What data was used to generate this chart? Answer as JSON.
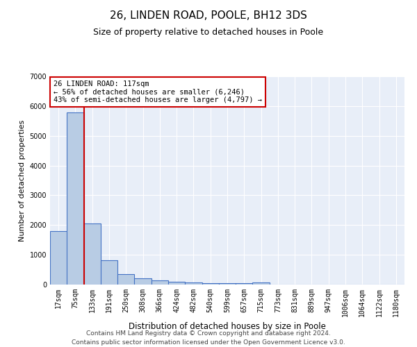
{
  "title": "26, LINDEN ROAD, POOLE, BH12 3DS",
  "subtitle": "Size of property relative to detached houses in Poole",
  "xlabel": "Distribution of detached houses by size in Poole",
  "ylabel": "Number of detached properties",
  "categories": [
    "17sqm",
    "75sqm",
    "133sqm",
    "191sqm",
    "250sqm",
    "308sqm",
    "366sqm",
    "424sqm",
    "482sqm",
    "540sqm",
    "599sqm",
    "657sqm",
    "715sqm",
    "773sqm",
    "831sqm",
    "889sqm",
    "947sqm",
    "1006sqm",
    "1064sqm",
    "1122sqm",
    "1180sqm"
  ],
  "values": [
    1800,
    5780,
    2060,
    820,
    340,
    220,
    130,
    95,
    70,
    55,
    50,
    45,
    80,
    0,
    0,
    0,
    0,
    0,
    0,
    0,
    0
  ],
  "bar_color": "#b8cce4",
  "bar_edge_color": "#4472c4",
  "property_line_label": "26 LINDEN ROAD: 117sqm",
  "annotation_line1": "← 56% of detached houses are smaller (6,246)",
  "annotation_line2": "43% of semi-detached houses are larger (4,797) →",
  "annotation_box_color": "#ffffff",
  "annotation_border_color": "#cc0000",
  "property_line_color": "#cc0000",
  "ylim": [
    0,
    7000
  ],
  "yticks": [
    0,
    1000,
    2000,
    3000,
    4000,
    5000,
    6000,
    7000
  ],
  "background_color": "#e8eef8",
  "footer_line1": "Contains HM Land Registry data © Crown copyright and database right 2024.",
  "footer_line2": "Contains public sector information licensed under the Open Government Licence v3.0.",
  "title_fontsize": 11,
  "subtitle_fontsize": 9,
  "xlabel_fontsize": 8.5,
  "ylabel_fontsize": 8,
  "tick_fontsize": 7,
  "footer_fontsize": 6.5,
  "annotation_fontsize": 7.5
}
